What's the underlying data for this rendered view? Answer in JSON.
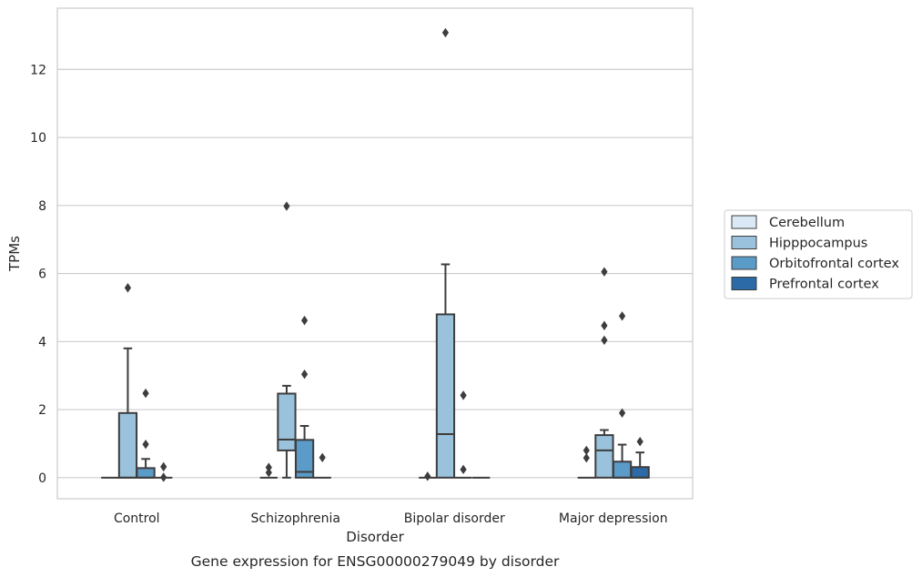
{
  "caption": "Gene expression for ENSG00000279049 by disorder",
  "chart_data": {
    "type": "box",
    "xlabel": "Disorder",
    "ylabel": "TPMs",
    "categories": [
      "Control",
      "Schizophrenia",
      "Bipolar disorder",
      "Major depression"
    ],
    "ylim": [
      -0.62,
      13.8
    ],
    "yticks": [
      0,
      2,
      4,
      6,
      8,
      10,
      12
    ],
    "grid": "horizontal",
    "legend_position": "right",
    "series": [
      {
        "name": "Cerebellum",
        "color": "#dbe9f6",
        "boxes": [
          {
            "q1": 0,
            "median": 0,
            "q3": 0,
            "whisker_low": 0,
            "whisker_high": 0,
            "outliers": []
          },
          {
            "q1": 0,
            "median": 0,
            "q3": 0,
            "whisker_low": 0,
            "whisker_high": 0,
            "outliers": []
          },
          {
            "q1": 0,
            "median": 0,
            "q3": 0,
            "whisker_low": 0,
            "whisker_high": 0,
            "outliers": []
          },
          {
            "q1": 0,
            "median": 0,
            "q3": 0,
            "whisker_low": 0,
            "whisker_high": 0,
            "outliers": []
          }
        ]
      },
      {
        "name": "Hipppocampus",
        "color": "#9ac2dc",
        "boxes": [
          {
            "q1": 0,
            "median": 0,
            "q3": 1.9,
            "whisker_low": 0,
            "whisker_high": 3.8,
            "outliers": [
              5.58
            ]
          },
          {
            "q1": 0.8,
            "median": 1.12,
            "q3": 2.47,
            "whisker_low": 0,
            "whisker_high": 2.7,
            "outliers": [
              7.98
            ]
          },
          {
            "q1": 0,
            "median": 1.28,
            "q3": 4.8,
            "whisker_low": 0,
            "whisker_high": 6.27,
            "outliers": [
              13.08
            ]
          },
          {
            "q1": 0,
            "median": 0.8,
            "q3": 1.25,
            "whisker_low": 0,
            "whisker_high": 1.4,
            "outliers": [
              6.05,
              4.47,
              4.04
            ]
          }
        ]
      },
      {
        "name": "Orbitofrontal cortex",
        "color": "#5b9bc8",
        "boxes": [
          {
            "q1": 0,
            "median": 0,
            "q3": 0.28,
            "whisker_low": 0,
            "whisker_high": 0.55,
            "outliers": [
              2.48,
              0.98
            ]
          },
          {
            "q1": 0,
            "median": 0.17,
            "q3": 1.11,
            "whisker_low": 0,
            "whisker_high": 1.52,
            "outliers": [
              4.62,
              3.04
            ]
          },
          {
            "q1": 0,
            "median": 0,
            "q3": 0,
            "whisker_low": 0,
            "whisker_high": 0,
            "outliers": [
              2.42,
              0.24
            ]
          },
          {
            "q1": 0,
            "median": 0,
            "q3": 0.47,
            "whisker_low": 0,
            "whisker_high": 0.97,
            "outliers": [
              4.75,
              1.9
            ]
          }
        ]
      },
      {
        "name": "Prefrontal cortex",
        "color": "#2b6aa6",
        "boxes": [
          {
            "q1": 0,
            "median": 0,
            "q3": 0,
            "whisker_low": 0,
            "whisker_high": 0,
            "outliers": [
              0.32,
              0.01
            ]
          },
          {
            "q1": 0,
            "median": 0,
            "q3": 0,
            "whisker_low": 0,
            "whisker_high": 0,
            "outliers": [
              0.59
            ]
          },
          {
            "q1": 0,
            "median": 0,
            "q3": 0,
            "whisker_low": 0,
            "whisker_high": 0,
            "outliers": []
          },
          {
            "q1": 0,
            "median": 0,
            "q3": 0.31,
            "whisker_low": 0,
            "whisker_high": 0.74,
            "outliers": [
              1.06
            ]
          }
        ]
      }
    ],
    "extra_outliers": [
      {
        "category": 0,
        "series": 0,
        "values": []
      },
      {
        "category": 1,
        "series": 0,
        "values": [
          0.3,
          0.15
        ]
      },
      {
        "category": 2,
        "series": 0,
        "values": [
          0.04
        ]
      },
      {
        "category": 3,
        "series": 0,
        "values": [
          0.8,
          0.58
        ]
      }
    ]
  }
}
